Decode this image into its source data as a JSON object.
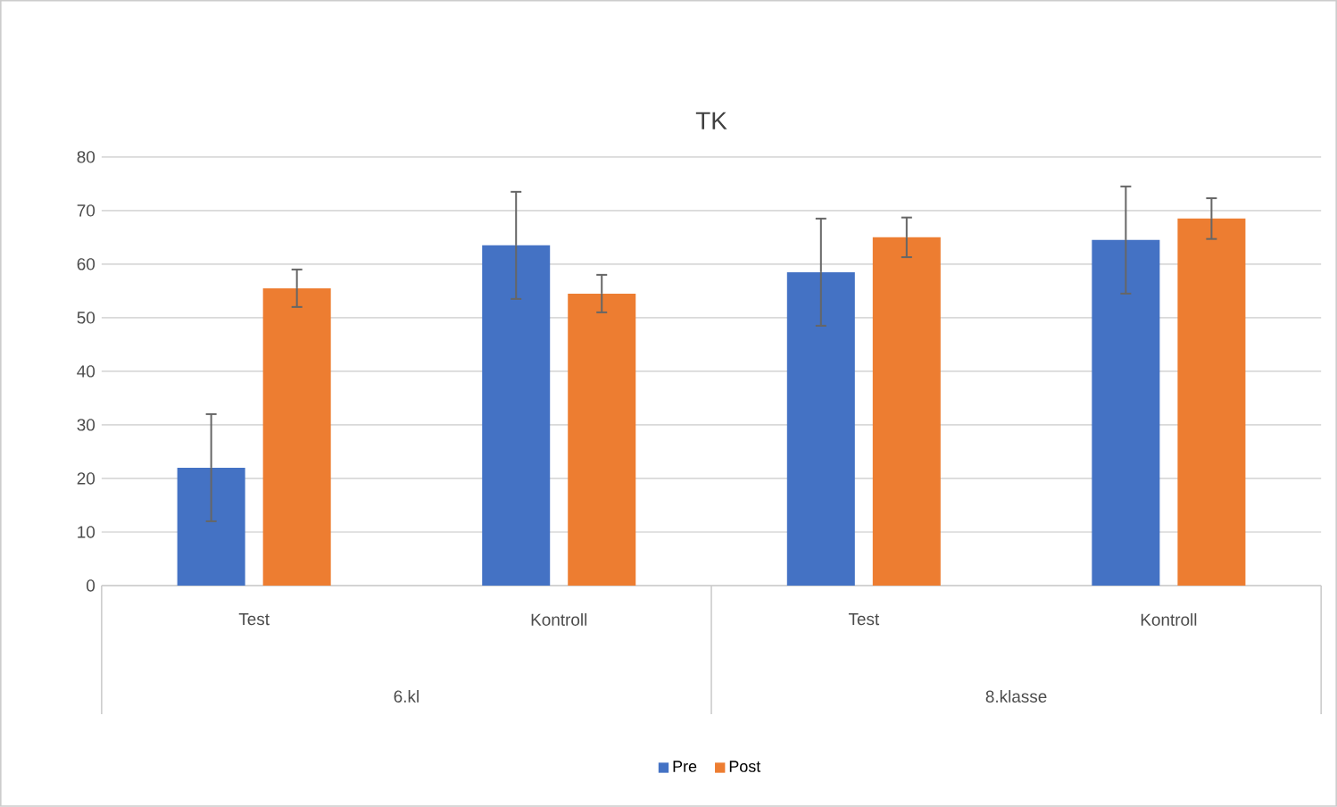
{
  "chart_data": {
    "type": "bar",
    "title": "TK",
    "categories": [
      "Test",
      "Kontroll",
      "Test",
      "Kontroll"
    ],
    "annotations": [
      "6.kl",
      "8.klasse"
    ],
    "series": [
      {
        "name": "Pre",
        "color": "#4472c4",
        "values": [
          22,
          63.5,
          58.5,
          64.5
        ],
        "errors": [
          10,
          10,
          10,
          10
        ]
      },
      {
        "name": "Post",
        "color": "#ed7d31",
        "values": [
          55.5,
          54.5,
          65,
          68.5
        ],
        "errors": [
          3.5,
          3.5,
          3.7,
          3.8
        ]
      }
    ],
    "ylim": [
      0,
      80
    ],
    "yticks": [
      0,
      10,
      20,
      30,
      40,
      50,
      60,
      70,
      80
    ],
    "grid": "y",
    "legend": "bottom"
  }
}
